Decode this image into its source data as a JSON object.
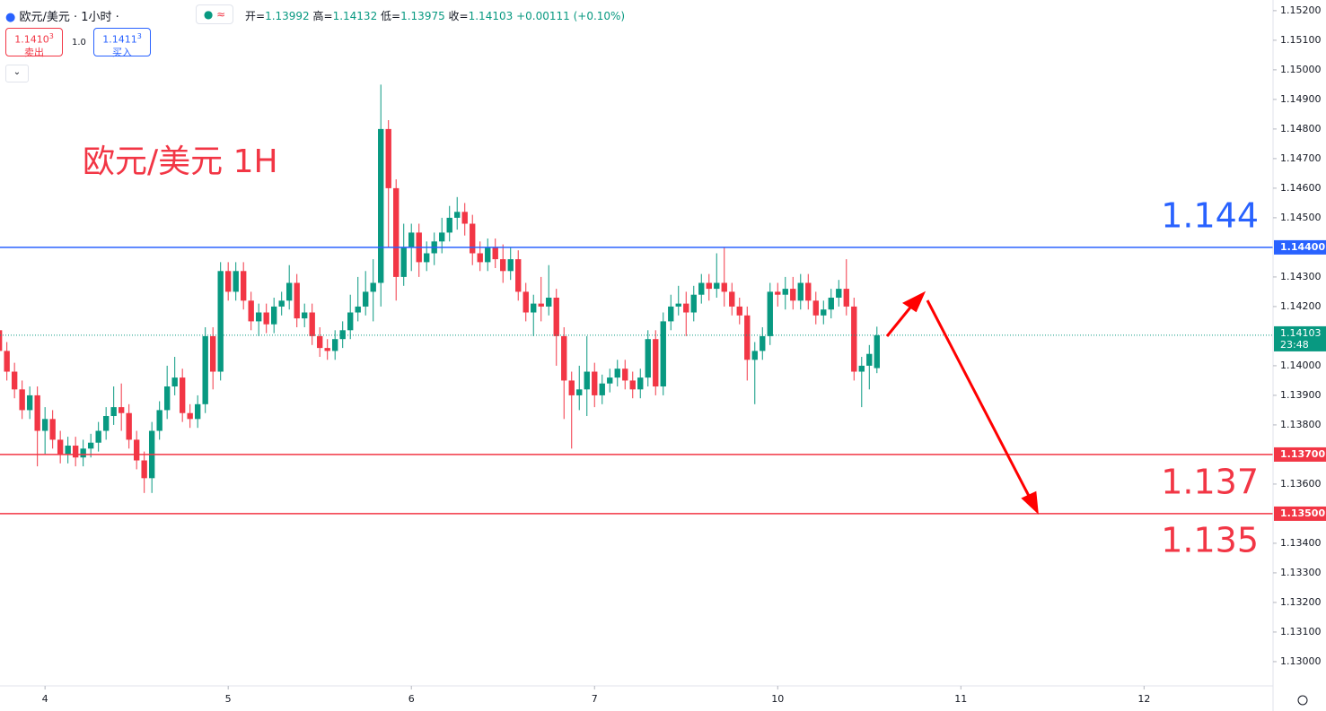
{
  "header": {
    "symbol": "欧元/美元 · 1小时 ·",
    "ohlc": [
      {
        "label": "开=",
        "value": 1.13992
      },
      {
        "label": "高=",
        "value": 1.14132
      },
      {
        "label": "低=",
        "value": 1.13975
      },
      {
        "label": "收=",
        "value": 1.14103
      }
    ],
    "change": "+0.00111",
    "change_pct": "(+0.10%)",
    "sell": {
      "main": "1.1410",
      "sup": "3",
      "label": "卖出"
    },
    "spread": "1.0",
    "buy": {
      "main": "1.1411",
      "sup": "3",
      "label": "买入"
    }
  },
  "chart_data": {
    "type": "candlestick",
    "annotation": "欧元/美元 1H",
    "up_color": "#089981",
    "down_color": "#f23645",
    "xlim": [
      -5.9,
      160.9
    ],
    "xticks": [
      {
        "value": 0,
        "label": "4"
      },
      {
        "value": 24,
        "label": "5"
      },
      {
        "value": 48,
        "label": "6"
      },
      {
        "value": 72,
        "label": "7"
      },
      {
        "value": 96,
        "label": "10"
      },
      {
        "value": 120,
        "label": "11"
      },
      {
        "value": 144,
        "label": "12"
      }
    ],
    "ylim": [
      1.12918,
      1.15236
    ],
    "yticks": [
      {
        "value": 1.152,
        "label": "1.15200"
      },
      {
        "value": 1.151,
        "label": "1.15100"
      },
      {
        "value": 1.15,
        "label": "1.15000"
      },
      {
        "value": 1.149,
        "label": "1.14900"
      },
      {
        "value": 1.148,
        "label": "1.14800"
      },
      {
        "value": 1.147,
        "label": "1.14700"
      },
      {
        "value": 1.146,
        "label": "1.14600"
      },
      {
        "value": 1.145,
        "label": "1.14500"
      },
      {
        "value": 1.143,
        "label": "1.14300"
      },
      {
        "value": 1.142,
        "label": "1.14200"
      },
      {
        "value": 1.14,
        "label": "1.14000"
      },
      {
        "value": 1.139,
        "label": "1.13900"
      },
      {
        "value": 1.138,
        "label": "1.13800"
      },
      {
        "value": 1.136,
        "label": "1.13600"
      },
      {
        "value": 1.134,
        "label": "1.13400"
      },
      {
        "value": 1.133,
        "label": "1.13300"
      },
      {
        "value": 1.132,
        "label": "1.13200"
      },
      {
        "value": 1.131,
        "label": "1.13100"
      },
      {
        "value": 1.13,
        "label": "1.13000"
      }
    ],
    "levels": [
      {
        "value": 1.144,
        "label": "1.14400",
        "color": "#2962ff"
      },
      {
        "value": 1.137,
        "label": "1.13700",
        "color": "#f23645"
      },
      {
        "value": 1.135,
        "label": "1.13500",
        "color": "#f23645"
      }
    ],
    "last_price": {
      "value": 1.14103,
      "label": "1.14103",
      "countdown": "23:48"
    },
    "x": [
      -6,
      -5,
      -4,
      -3,
      -2,
      -1,
      0,
      1,
      2,
      3,
      4,
      5,
      6,
      7,
      8,
      9,
      10,
      11,
      12,
      13,
      14,
      15,
      16,
      17,
      18,
      19,
      20,
      21,
      22,
      23,
      24,
      25,
      26,
      27,
      28,
      29,
      30,
      31,
      32,
      33,
      34,
      35,
      36,
      37,
      38,
      39,
      40,
      41,
      42,
      43,
      44,
      45,
      46,
      47,
      48,
      49,
      50,
      51,
      52,
      53,
      54,
      55,
      56,
      57,
      58,
      59,
      60,
      61,
      62,
      63,
      64,
      65,
      66,
      67,
      68,
      69,
      70,
      71,
      72,
      73,
      74,
      75,
      76,
      77,
      78,
      79,
      80,
      81,
      82,
      83,
      84,
      85,
      86,
      87,
      88,
      89,
      90,
      91,
      92,
      93,
      94,
      95,
      96,
      97,
      98,
      99,
      100,
      101,
      102,
      103,
      104,
      105,
      106,
      107,
      108,
      109
    ],
    "ohlc": [
      [
        1.1412,
        1.1415,
        1.1402,
        1.1405
      ],
      [
        1.1405,
        1.1408,
        1.1395,
        1.1398
      ],
      [
        1.1398,
        1.1401,
        1.1389,
        1.1392
      ],
      [
        1.1392,
        1.1395,
        1.1382,
        1.1385
      ],
      [
        1.1385,
        1.1393,
        1.1382,
        1.139
      ],
      [
        1.139,
        1.1393,
        1.1366,
        1.1378
      ],
      [
        1.1378,
        1.1386,
        1.137,
        1.1382
      ],
      [
        1.1382,
        1.1385,
        1.1372,
        1.1375
      ],
      [
        1.1375,
        1.1378,
        1.1367,
        1.137
      ],
      [
        1.137,
        1.1376,
        1.1367,
        1.1373
      ],
      [
        1.1373,
        1.1376,
        1.1366,
        1.1369
      ],
      [
        1.1369,
        1.1375,
        1.1366,
        1.1372
      ],
      [
        1.1372,
        1.1377,
        1.1369,
        1.1374
      ],
      [
        1.1374,
        1.1381,
        1.1371,
        1.1378
      ],
      [
        1.1378,
        1.1386,
        1.1375,
        1.1383
      ],
      [
        1.1383,
        1.1393,
        1.138,
        1.1386
      ],
      [
        1.1386,
        1.1394,
        1.1378,
        1.1384
      ],
      [
        1.1384,
        1.1387,
        1.1372,
        1.1375
      ],
      [
        1.1375,
        1.1378,
        1.1365,
        1.1368
      ],
      [
        1.1368,
        1.1371,
        1.1357,
        1.1362
      ],
      [
        1.1362,
        1.1381,
        1.1357,
        1.1378
      ],
      [
        1.1378,
        1.1388,
        1.1375,
        1.1385
      ],
      [
        1.1385,
        1.14,
        1.1382,
        1.1393
      ],
      [
        1.1393,
        1.1403,
        1.139,
        1.1396
      ],
      [
        1.1396,
        1.1399,
        1.1381,
        1.1384
      ],
      [
        1.1384,
        1.1387,
        1.1379,
        1.1382
      ],
      [
        1.1382,
        1.139,
        1.1379,
        1.1387
      ],
      [
        1.1387,
        1.1413,
        1.1384,
        1.141
      ],
      [
        1.141,
        1.1413,
        1.1392,
        1.1398
      ],
      [
        1.1398,
        1.1435,
        1.1395,
        1.1432
      ],
      [
        1.1432,
        1.1435,
        1.1422,
        1.1425
      ],
      [
        1.1425,
        1.1435,
        1.1422,
        1.1432
      ],
      [
        1.1432,
        1.1435,
        1.1419,
        1.1422
      ],
      [
        1.1422,
        1.1425,
        1.1412,
        1.1415
      ],
      [
        1.1415,
        1.1421,
        1.141,
        1.1418
      ],
      [
        1.1418,
        1.1421,
        1.1411,
        1.1414
      ],
      [
        1.1414,
        1.1423,
        1.1411,
        1.142
      ],
      [
        1.142,
        1.1425,
        1.1417,
        1.1422
      ],
      [
        1.1422,
        1.1434,
        1.1419,
        1.1428
      ],
      [
        1.1428,
        1.1431,
        1.1413,
        1.1416
      ],
      [
        1.1416,
        1.1421,
        1.1413,
        1.1418
      ],
      [
        1.1418,
        1.1421,
        1.1407,
        1.141
      ],
      [
        1.141,
        1.1413,
        1.1403,
        1.1406
      ],
      [
        1.1406,
        1.1409,
        1.1402,
        1.1405
      ],
      [
        1.1405,
        1.1412,
        1.1402,
        1.1409
      ],
      [
        1.1409,
        1.1415,
        1.1406,
        1.1412
      ],
      [
        1.1412,
        1.1424,
        1.1409,
        1.1418
      ],
      [
        1.1418,
        1.143,
        1.1415,
        1.142
      ],
      [
        1.142,
        1.1432,
        1.1417,
        1.1425
      ],
      [
        1.1425,
        1.1436,
        1.1415,
        1.1428
      ],
      [
        1.1428,
        1.1495,
        1.142,
        1.148
      ],
      [
        1.148,
        1.1483,
        1.144,
        1.146
      ],
      [
        1.146,
        1.1463,
        1.1422,
        1.143
      ],
      [
        1.143,
        1.1448,
        1.1427,
        1.144
      ],
      [
        1.144,
        1.1448,
        1.1432,
        1.1445
      ],
      [
        1.1445,
        1.1448,
        1.143,
        1.1435
      ],
      [
        1.1435,
        1.1442,
        1.1432,
        1.1438
      ],
      [
        1.1438,
        1.1445,
        1.1434,
        1.1442
      ],
      [
        1.1442,
        1.145,
        1.1438,
        1.1445
      ],
      [
        1.1445,
        1.1454,
        1.1442,
        1.145
      ],
      [
        1.145,
        1.1457,
        1.1446,
        1.1452
      ],
      [
        1.1452,
        1.1455,
        1.1444,
        1.1448
      ],
      [
        1.1448,
        1.1451,
        1.1434,
        1.1438
      ],
      [
        1.1438,
        1.1442,
        1.1432,
        1.1435
      ],
      [
        1.1435,
        1.1443,
        1.1432,
        1.144
      ],
      [
        1.144,
        1.1443,
        1.1433,
        1.1436
      ],
      [
        1.1436,
        1.1441,
        1.1428,
        1.1432
      ],
      [
        1.1432,
        1.144,
        1.1429,
        1.1436
      ],
      [
        1.1436,
        1.1439,
        1.1422,
        1.1425
      ],
      [
        1.1425,
        1.1428,
        1.1415,
        1.1418
      ],
      [
        1.1418,
        1.1424,
        1.141,
        1.1421
      ],
      [
        1.1421,
        1.143,
        1.1415,
        1.142
      ],
      [
        1.142,
        1.1434,
        1.1417,
        1.1423
      ],
      [
        1.1423,
        1.1426,
        1.14,
        1.141
      ],
      [
        1.141,
        1.1413,
        1.1382,
        1.1395
      ],
      [
        1.1395,
        1.1398,
        1.1372,
        1.139
      ],
      [
        1.139,
        1.14,
        1.1385,
        1.1392
      ],
      [
        1.1392,
        1.141,
        1.1383,
        1.1398
      ],
      [
        1.1398,
        1.1401,
        1.1386,
        1.139
      ],
      [
        1.139,
        1.1397,
        1.1387,
        1.1394
      ],
      [
        1.1394,
        1.1399,
        1.1391,
        1.1396
      ],
      [
        1.1396,
        1.1402,
        1.1393,
        1.1399
      ],
      [
        1.1399,
        1.1402,
        1.1392,
        1.1395
      ],
      [
        1.1395,
        1.1398,
        1.1389,
        1.1392
      ],
      [
        1.1392,
        1.1399,
        1.1389,
        1.1396
      ],
      [
        1.1396,
        1.1412,
        1.1393,
        1.1409
      ],
      [
        1.1409,
        1.1412,
        1.139,
        1.1393
      ],
      [
        1.1393,
        1.1418,
        1.139,
        1.1415
      ],
      [
        1.1415,
        1.1424,
        1.1412,
        1.142
      ],
      [
        1.142,
        1.1427,
        1.1417,
        1.1421
      ],
      [
        1.1421,
        1.1425,
        1.141,
        1.1418
      ],
      [
        1.1418,
        1.1427,
        1.1415,
        1.1424
      ],
      [
        1.1424,
        1.1431,
        1.1421,
        1.1428
      ],
      [
        1.1428,
        1.1431,
        1.1422,
        1.1426
      ],
      [
        1.1426,
        1.1438,
        1.1423,
        1.1428
      ],
      [
        1.1428,
        1.144,
        1.142,
        1.1425
      ],
      [
        1.1425,
        1.1428,
        1.1417,
        1.142
      ],
      [
        1.142,
        1.1423,
        1.1414,
        1.1417
      ],
      [
        1.1417,
        1.142,
        1.1395,
        1.1402
      ],
      [
        1.1402,
        1.1408,
        1.1387,
        1.1405
      ],
      [
        1.1405,
        1.1413,
        1.1402,
        1.141
      ],
      [
        1.141,
        1.1428,
        1.1407,
        1.1425
      ],
      [
        1.1425,
        1.1428,
        1.142,
        1.1424
      ],
      [
        1.1424,
        1.143,
        1.1419,
        1.1426
      ],
      [
        1.1426,
        1.143,
        1.1419,
        1.1422
      ],
      [
        1.1422,
        1.1431,
        1.1419,
        1.1428
      ],
      [
        1.1428,
        1.1431,
        1.1419,
        1.1422
      ],
      [
        1.1422,
        1.1425,
        1.1414,
        1.1417
      ],
      [
        1.1417,
        1.1422,
        1.1414,
        1.1419
      ],
      [
        1.1419,
        1.1426,
        1.1416,
        1.1423
      ],
      [
        1.1423,
        1.1429,
        1.142,
        1.1426
      ],
      [
        1.1426,
        1.1436,
        1.1417,
        1.142
      ],
      [
        1.142,
        1.1423,
        1.1395,
        1.1398
      ],
      [
        1.1398,
        1.1403,
        1.1386,
        1.14
      ],
      [
        1.14,
        1.1407,
        1.1392,
        1.1404
      ],
      [
        1.13992,
        1.14132,
        1.13975,
        1.14103
      ]
    ]
  }
}
